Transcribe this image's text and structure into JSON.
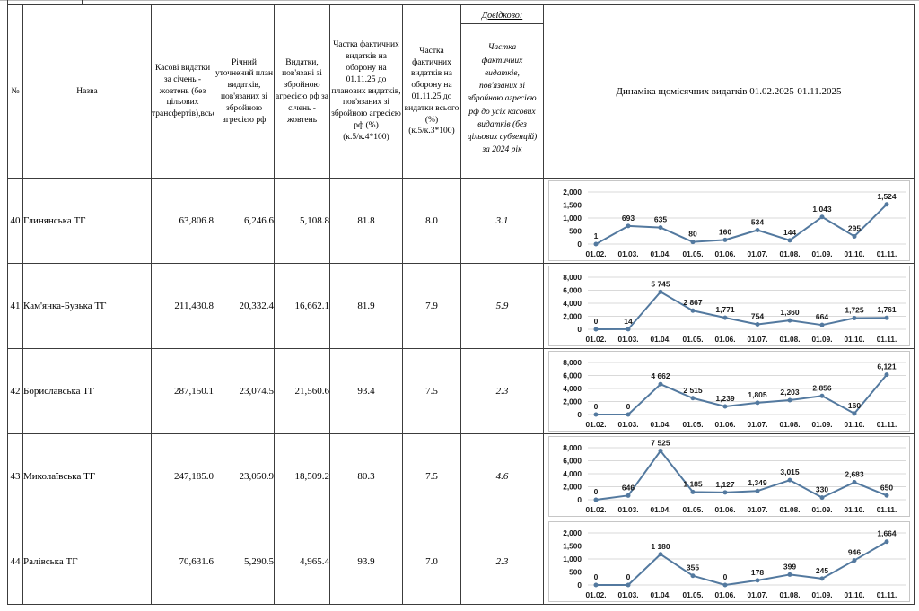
{
  "table": {
    "col_headers": {
      "num": "№",
      "name": "Назва",
      "cash": "Касові видатки за січень - жовтень (без цільових трансфертів),всього",
      "plan": "Річний уточнений план видатків, пов'язаних зі збройною агресією рф",
      "war_spend": "Видатки, пов'язані зі збройною агресією рф за січень - жовтень",
      "pct_plan": "Частка фактичних видатків на оборону на 01.11.25 до планових видатків, пов'язаних зі збройною агресією рф (%)",
      "pct_plan_formula": "(к.5/к.4*100)",
      "pct_total": "Частка фактичних видатків на оборону на 01.11.25 до видатки всього (%)",
      "pct_total_formula": "(к.5/к.3*100)",
      "ref_tag": "Довідково:",
      "ref": "Частка фактичних видатків, пов'язаних зі збройною агресією рф до усіх касових видатків (без цільових субвенцій) за 2024 рік",
      "dynamics": "Динаміка щомісячних видатків 01.02.2025-01.11.2025"
    },
    "rows": [
      {
        "num": "40",
        "name": "Глинянська ТГ",
        "cash": "63,806.8",
        "plan": "6,246.6",
        "war_spend": "5,108.8",
        "pct_plan": "81.8",
        "pct_total": "8.0",
        "ref": "3.1"
      },
      {
        "num": "41",
        "name": "Кам'янка-Бузька ТГ",
        "cash": "211,430.8",
        "plan": "20,332.4",
        "war_spend": "16,662.1",
        "pct_plan": "81.9",
        "pct_total": "7.9",
        "ref": "5.9"
      },
      {
        "num": "42",
        "name": "Бориславська ТГ",
        "cash": "287,150.1",
        "plan": "23,074.5",
        "war_spend": "21,560.6",
        "pct_plan": "93.4",
        "pct_total": "7.5",
        "ref": "2.3"
      },
      {
        "num": "43",
        "name": "Миколаївська ТГ",
        "cash": "247,185.0",
        "plan": "23,050.9",
        "war_spend": "18,509.2",
        "pct_plan": "80.3",
        "pct_total": "7.5",
        "ref": "4.6"
      },
      {
        "num": "44",
        "name": "Ралівська ТГ",
        "cash": "70,631.6",
        "plan": "5,290.5",
        "war_spend": "4,965.4",
        "pct_plan": "93.9",
        "pct_total": "7.0",
        "ref": "2.3"
      }
    ]
  },
  "chart_style": {
    "line_color": "#53799f",
    "grid_color": "#d9d9d9",
    "box_border_color": "#c6c6c6"
  },
  "chart_data": [
    {
      "type": "line",
      "row": "40",
      "x": [
        "01.02.",
        "01.03.",
        "01.04.",
        "01.05.",
        "01.06.",
        "01.07.",
        "01.08.",
        "01.09.",
        "01.10.",
        "01.11."
      ],
      "values": [
        1,
        693,
        635,
        80,
        160,
        534,
        144,
        1043,
        295,
        1524
      ],
      "labels": [
        "1",
        "693",
        "635",
        "80",
        "160",
        "534",
        "144",
        "1,043",
        "295",
        "1,524"
      ],
      "ylim": [
        0,
        2000
      ],
      "yticks": [
        0,
        500,
        1000,
        1500,
        2000
      ],
      "ytick_labels": [
        "0",
        "500",
        "1,000",
        "1,500",
        "2,000"
      ],
      "grid": true,
      "legend": "none"
    },
    {
      "type": "line",
      "row": "41",
      "x": [
        "01.02.",
        "01.03.",
        "01.04.",
        "01.05.",
        "01.06.",
        "01.07.",
        "01.08.",
        "01.09.",
        "01.10.",
        "01.11."
      ],
      "values": [
        0,
        14,
        5745,
        2867,
        1771,
        754,
        1360,
        664,
        1725,
        1761
      ],
      "labels": [
        "0",
        "14",
        "5 745",
        "2 867",
        "1,771",
        "754",
        "1,360",
        "664",
        "1,725",
        "1,761"
      ],
      "ylim": [
        0,
        8000
      ],
      "yticks": [
        0,
        2000,
        4000,
        6000,
        8000
      ],
      "ytick_labels": [
        "0",
        "2,000",
        "4,000",
        "6,000",
        "8,000"
      ],
      "grid": true,
      "legend": "none"
    },
    {
      "type": "line",
      "row": "42",
      "x": [
        "01.02.",
        "01.03.",
        "01.04.",
        "01.05.",
        "01.06.",
        "01.07.",
        "01.08.",
        "01.09.",
        "01.10.",
        "01.11."
      ],
      "values": [
        0,
        0,
        4662,
        2515,
        1239,
        1805,
        2203,
        2856,
        160,
        6121
      ],
      "labels": [
        "0",
        "0",
        "4 662",
        "2 515",
        "1,239",
        "1,805",
        "2,203",
        "2,856",
        "160",
        "6,121"
      ],
      "ylim": [
        0,
        8000
      ],
      "yticks": [
        0,
        2000,
        4000,
        6000,
        8000
      ],
      "ytick_labels": [
        "0",
        "2,000",
        "4,000",
        "6,000",
        "8,000"
      ],
      "grid": true,
      "legend": "none"
    },
    {
      "type": "line",
      "row": "43",
      "x": [
        "01.02.",
        "01.03.",
        "01.04.",
        "01.05.",
        "01.06.",
        "01.07.",
        "01.08.",
        "01.09.",
        "01.10.",
        "01.11."
      ],
      "values": [
        0,
        646,
        7525,
        1185,
        1127,
        1349,
        3015,
        330,
        2683,
        650
      ],
      "labels": [
        "0",
        "646",
        "7 525",
        "1 185",
        "1,127",
        "1,349",
        "3,015",
        "330",
        "2,683",
        "650"
      ],
      "ylim": [
        0,
        8000
      ],
      "yticks": [
        0,
        2000,
        4000,
        6000,
        8000
      ],
      "ytick_labels": [
        "0",
        "2,000",
        "4,000",
        "6,000",
        "8,000"
      ],
      "grid": true,
      "legend": "none"
    },
    {
      "type": "line",
      "row": "44",
      "x": [
        "01.02.",
        "01.03.",
        "01.04.",
        "01.05.",
        "01.06.",
        "01.07.",
        "01.08.",
        "01.09.",
        "01.10.",
        "01.11."
      ],
      "values": [
        0,
        0,
        1180,
        355,
        0,
        178,
        399,
        245,
        946,
        1664
      ],
      "labels": [
        "0",
        "0",
        "1 180",
        "355",
        "0",
        "178",
        "399",
        "245",
        "946",
        "1,664"
      ],
      "ylim": [
        0,
        2000
      ],
      "yticks": [
        0,
        500,
        1000,
        1500,
        2000
      ],
      "ytick_labels": [
        "0",
        "500",
        "1,000",
        "1,500",
        "2,000"
      ],
      "grid": true,
      "legend": "none"
    }
  ]
}
